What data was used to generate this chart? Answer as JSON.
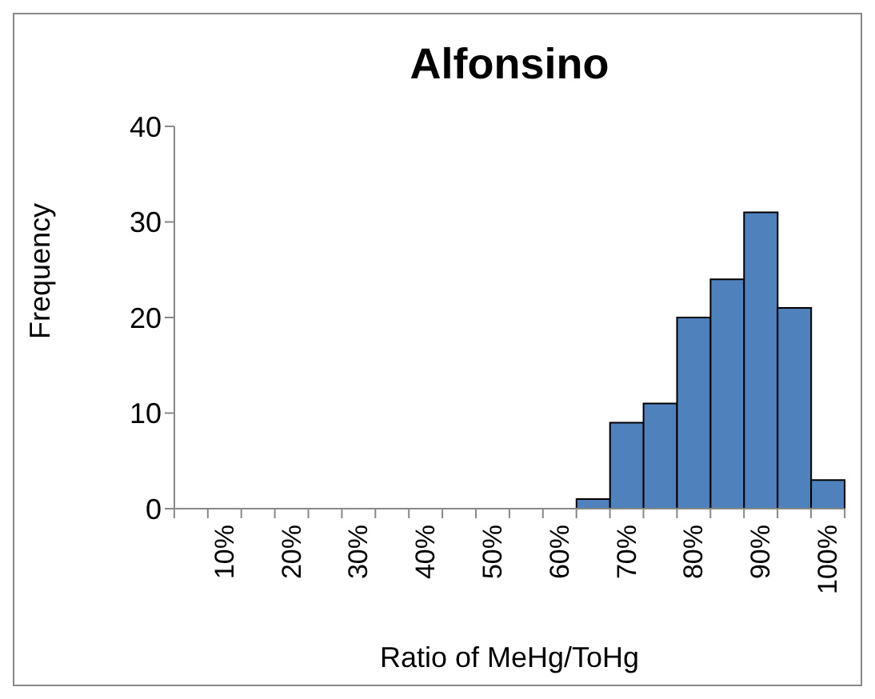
{
  "chart_data": {
    "type": "bar",
    "title": "Alfonsino",
    "xlabel": "Ratio of MeHg/ToHg",
    "ylabel": "Frequency",
    "categories": [
      null,
      "10%",
      null,
      "20%",
      null,
      "30%",
      null,
      "40%",
      null,
      "50%",
      null,
      "60%",
      null,
      "70%",
      null,
      "80%",
      null,
      "90%",
      null,
      "100%"
    ],
    "values": [
      0,
      0,
      0,
      0,
      0,
      0,
      0,
      0,
      0,
      0,
      0,
      0,
      1,
      9,
      11,
      20,
      24,
      31,
      21,
      3
    ],
    "color": "#4f81bd",
    "ylim": [
      0,
      40
    ],
    "yticks": [
      0,
      10,
      20,
      30,
      40
    ]
  }
}
